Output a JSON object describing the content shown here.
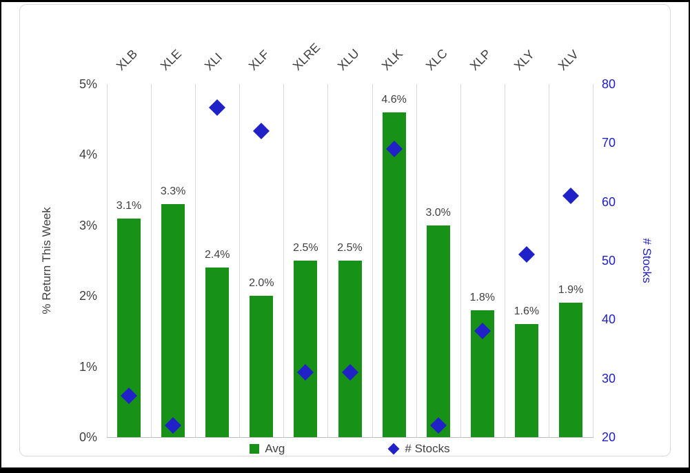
{
  "chart_data": {
    "type": "bar",
    "categories": [
      "XLB",
      "XLE",
      "XLI",
      "XLF",
      "XLRE",
      "XLU",
      "XLK",
      "XLC",
      "XLP",
      "XLY",
      "XLV"
    ],
    "series": [
      {
        "name": "Avg",
        "type": "bar",
        "axis": "left",
        "color": "#179117",
        "values": [
          3.1,
          3.3,
          2.4,
          2.0,
          2.5,
          2.5,
          4.6,
          3.0,
          1.8,
          1.6,
          1.9
        ],
        "labels": [
          "3.1%",
          "3.3%",
          "2.4%",
          "2.0%",
          "2.5%",
          "2.5%",
          "4.6%",
          "3.0%",
          "1.8%",
          "1.6%",
          "1.9%"
        ]
      },
      {
        "name": "# Stocks",
        "type": "scatter",
        "axis": "right",
        "color": "#2121c8",
        "values": [
          27,
          22,
          76,
          72,
          31,
          31,
          69,
          22,
          38,
          51,
          61
        ]
      }
    ],
    "left_axis": {
      "label": "% Return This Week",
      "min": 0,
      "max": 5,
      "ticks": [
        "0%",
        "1%",
        "2%",
        "3%",
        "4%",
        "5%"
      ],
      "color": "#404040"
    },
    "right_axis": {
      "label": "# Stocks",
      "min": 20,
      "max": 80,
      "ticks": [
        "20",
        "30",
        "40",
        "50",
        "60",
        "70",
        "80"
      ],
      "color": "#2020c0"
    },
    "legend": [
      {
        "label": "Avg",
        "marker": "square",
        "color": "#179117"
      },
      {
        "label": "# Stocks",
        "marker": "diamond",
        "color": "#2121c8"
      }
    ],
    "grid": "vertical",
    "legend_position": "bottom",
    "title": ""
  }
}
